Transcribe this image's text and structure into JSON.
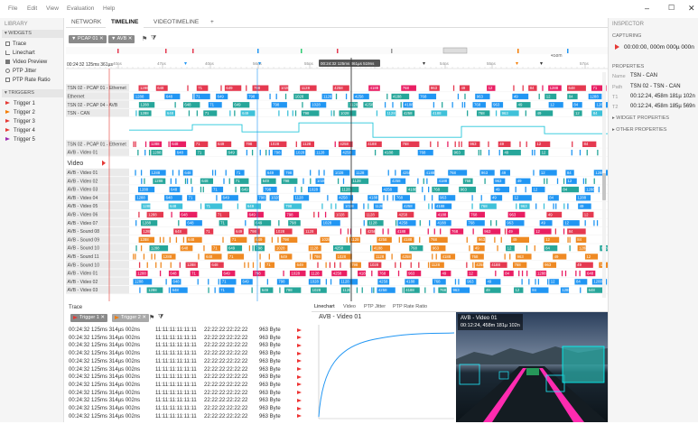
{
  "menu": [
    "File",
    "Edit",
    "View",
    "Evaluation",
    "Help"
  ],
  "library": {
    "title": "LIBRARY",
    "widgets_header": "WIDGETS",
    "widgets": [
      {
        "label": "Trace",
        "icon": "list-icon"
      },
      {
        "label": "Linechart",
        "icon": "linechart-icon"
      },
      {
        "label": "Video Preview",
        "icon": "video-icon"
      },
      {
        "label": "PTP Jitter",
        "icon": "jitter-icon"
      },
      {
        "label": "PTP Rate Ratio",
        "icon": "ratio-icon"
      }
    ],
    "triggers_header": "TRIGGERS",
    "triggers": [
      {
        "label": "Trigger 1",
        "color": "#e53935"
      },
      {
        "label": "Trigger 2",
        "color": "#f57c00"
      },
      {
        "label": "Trigger 3",
        "color": "#e53935"
      },
      {
        "label": "Trigger 4",
        "color": "#e53935"
      },
      {
        "label": "Trigger 5",
        "color": "#9c27b0"
      }
    ]
  },
  "tabs": [
    "NETWORK",
    "TIMELINE",
    "VIDEOTIMELINE"
  ],
  "add_tab": "+",
  "toolbar": {
    "filter1": "PCAP 01",
    "filter2": "AVB",
    "time_readout": "00:12:24, 458m 181µ 102n"
  },
  "timeline": {
    "start_label": "00:24:32 125ms 361µs",
    "cursor_label": "00:24:32 125ms 361µs 519ns",
    "ticks": [
      "40ns",
      "47ns",
      "40ns",
      "56ns",
      "55ns",
      "30ns",
      "54ns",
      "55ns",
      "57ns"
    ]
  },
  "rows_top": [
    "TSN 02 - PCAP 01 - Ethernet",
    "Ethernet",
    "TSN 02 - PCAP 04 - AVB",
    "TSN - CAN"
  ],
  "rows_mid": [
    "TSN 02 - PCAP 01 - Ethernet",
    "AVB - Video 01"
  ],
  "video_header": "Video",
  "rows_video": [
    "AVB - Video 01",
    "AVB - Video 02",
    "AVB - Video 03",
    "AVB - Video 04",
    "AVB - Video 05",
    "AVB - Video 06",
    "AVB - Video 07",
    "AVB - Sound 08",
    "AVB - Sound 09",
    "AVB - Sound 10",
    "AVB - Sound 11",
    "AVB - Sound 10",
    "AVB - Video 01",
    "AVB - Video 02",
    "AVB - Video 03"
  ],
  "packet_labels": [
    "1288",
    "648",
    "71",
    "649",
    "798",
    "1028",
    "1128",
    "4258",
    "4188",
    "768",
    "963",
    "49",
    "12",
    "84"
  ],
  "colors": {
    "red": "#e53950",
    "blue": "#2196f3",
    "teal": "#26a69a",
    "pink": "#e91e63",
    "orange": "#ef8a23",
    "cyan": "#3fc1d9",
    "accent": "#3aa9c9"
  },
  "trace": {
    "title": "Trace",
    "chip1": "Trigger 1",
    "chip2": "Trigger 2",
    "rows": [
      [
        "00:24:32 125ms 314µs 002ns",
        "11:11:11:11:11:11",
        "22:22:22:22:22:22",
        "963 Byte"
      ],
      [
        "00:24:32 125ms 314µs 002ns",
        "11:11:11:11:11:11",
        "22:22:22:22:22:22",
        "963 Byte"
      ],
      [
        "00:24:32 125ms 314µs 002ns",
        "11:11:11:11:11:11",
        "22:22:22:22:22:22",
        "963 Byte"
      ],
      [
        "00:24:32 125ms 314µs 002ns",
        "11:11:11:11:11:11",
        "22:22:22:22:22:22",
        "963 Byte"
      ],
      [
        "00:24:32 125ms 314µs 002ns",
        "11:11:11:11:11:11",
        "22:22:22:22:22:22",
        "963 Byte"
      ],
      [
        "00:24:32 125ms 314µs 002ns",
        "11:11:11:11:11:11",
        "22:22:22:22:22:22",
        "963 Byte"
      ],
      [
        "00:24:32 125ms 314µs 002ns",
        "11:11:11:11:11:11",
        "22:22:22:22:22:22",
        "963 Byte"
      ],
      [
        "00:24:32 125ms 314µs 002ns",
        "11:11:11:11:11:11",
        "22:22:22:22:22:22",
        "963 Byte"
      ],
      [
        "00:24:32 125ms 314µs 002ns",
        "11:11:11:11:11:11",
        "22:22:22:22:22:22",
        "963 Byte"
      ],
      [
        "00:24:32 125ms 314µs 002ns",
        "11:11:11:11:11:11",
        "22:22:22:22:22:22",
        "963 Byte"
      ],
      [
        "00:24:32 125ms 314µs 002ns",
        "11:11:11:11:11:11",
        "22:22:22:22:22:22",
        "963 Byte"
      ],
      [
        "00:24:32 125ms 314µs 002ns",
        "11:11:11:11:11:11",
        "22:22:22:22:22:22",
        "963 Byte"
      ]
    ]
  },
  "viz_tabs": [
    "Linechart",
    "Video",
    "PTP Jitter",
    "PTP Rate Ratio"
  ],
  "linechart_title": "AVB - Video 01",
  "video_overlay": {
    "title": "AVB - Video 01",
    "time": "00:12:24, 458m 181µ 102n"
  },
  "inspector": {
    "title": "INSPECTOR",
    "capturing": "CAPTURING",
    "capture_time": "00:00:00, 000m 000µ 000n",
    "properties": "PROPERTIES",
    "props": [
      {
        "key": "Name",
        "value": "TSN - CAN"
      },
      {
        "key": "Path",
        "value": "TSN 02 - TSN - CAN"
      },
      {
        "key": "T1",
        "value": "00:12:24, 458m 181µ 102n"
      },
      {
        "key": "T2",
        "value": "00:12:24, 458m 185µ 569n"
      }
    ],
    "widget_properties": "WIDGET PROPERTIES",
    "other_properties": "OTHER PROPERTIES"
  }
}
